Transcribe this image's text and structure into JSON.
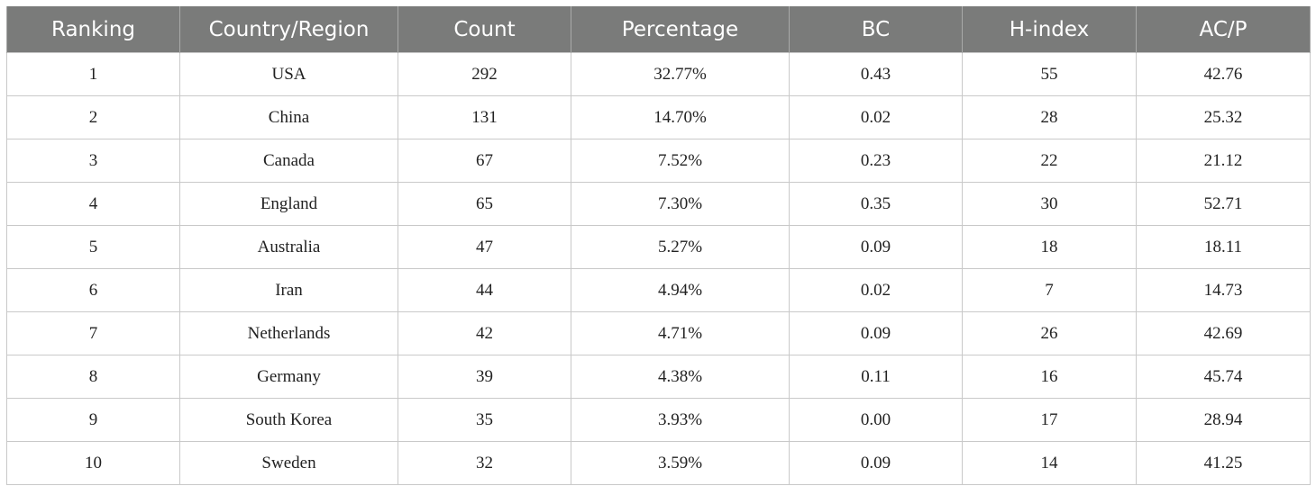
{
  "table": {
    "headers": [
      "Ranking",
      "Country/Region",
      "Count",
      "Percentage",
      "BC",
      "H-index",
      "AC/P"
    ],
    "rows": [
      [
        "1",
        "USA",
        "292",
        "32.77%",
        "0.43",
        "55",
        "42.76"
      ],
      [
        "2",
        "China",
        "131",
        "14.70%",
        "0.02",
        "28",
        "25.32"
      ],
      [
        "3",
        "Canada",
        "67",
        "7.52%",
        "0.23",
        "22",
        "21.12"
      ],
      [
        "4",
        "England",
        "65",
        "7.30%",
        "0.35",
        "30",
        "52.71"
      ],
      [
        "5",
        "Australia",
        "47",
        "5.27%",
        "0.09",
        "18",
        "18.11"
      ],
      [
        "6",
        "Iran",
        "44",
        "4.94%",
        "0.02",
        "7",
        "14.73"
      ],
      [
        "7",
        "Netherlands",
        "42",
        "4.71%",
        "0.09",
        "26",
        "42.69"
      ],
      [
        "8",
        "Germany",
        "39",
        "4.38%",
        "0.11",
        "16",
        "45.74"
      ],
      [
        "9",
        "South Korea",
        "35",
        "3.93%",
        "0.00",
        "17",
        "28.94"
      ],
      [
        "10",
        "Sweden",
        "32",
        "3.59%",
        "0.09",
        "14",
        "41.25"
      ]
    ]
  },
  "colors": {
    "header_background": "#7a7b7a",
    "header_text": "#ffffff",
    "grid_lines": "#c9c9c9"
  }
}
